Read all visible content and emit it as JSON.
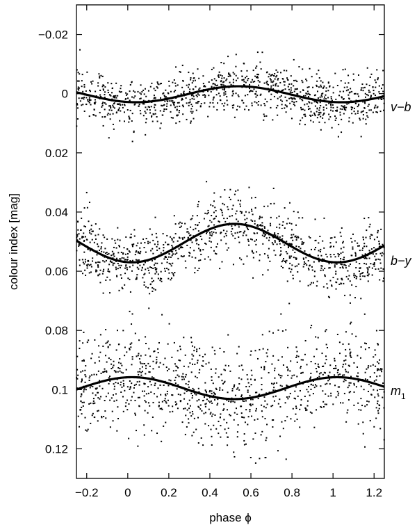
{
  "chart_data": {
    "type": "scatter",
    "xlabel": "phase ϕ",
    "ylabel": "colour index [mag]",
    "xlim": [
      -0.25,
      1.25
    ],
    "ylim": [
      -0.03,
      0.13
    ],
    "y_inverted": true,
    "grid": false,
    "xticks": [
      -0.2,
      0,
      0.2,
      0.4,
      0.6,
      0.8,
      1,
      1.2
    ],
    "xtick_labels": [
      "−0.2",
      "0",
      "0.2",
      "0.4",
      "0.6",
      "0.8",
      "1",
      "1.2"
    ],
    "yticks": [
      -0.02,
      0,
      0.02,
      0.04,
      0.06,
      0.08,
      0.1,
      0.12
    ],
    "ytick_labels": [
      "−0.02",
      "0",
      "0.02",
      "0.04",
      "0.06",
      "0.08",
      "0.1",
      "0.12"
    ],
    "series": [
      {
        "name": "v−b",
        "name_base": "v−b",
        "name_sub": "",
        "fit": {
          "mean": 0.0002,
          "amplitude": 0.0027,
          "min_phase": 0.54
        },
        "scatter": {
          "sigma": 0.0042,
          "count": 1050
        }
      },
      {
        "name": "b−y",
        "name_base": "b−y",
        "name_sub": "",
        "fit": {
          "mean": 0.0505,
          "amplitude": 0.0065,
          "min_phase": 0.52
        },
        "scatter": {
          "sigma": 0.0055,
          "count": 1050
        }
      },
      {
        "name": "m1",
        "name_base": "m",
        "name_sub": "1",
        "fit": {
          "mean": 0.0995,
          "amplitude": -0.0037,
          "min_phase": 0.52
        },
        "scatter": {
          "sigma": 0.0085,
          "count": 1050
        }
      }
    ]
  }
}
